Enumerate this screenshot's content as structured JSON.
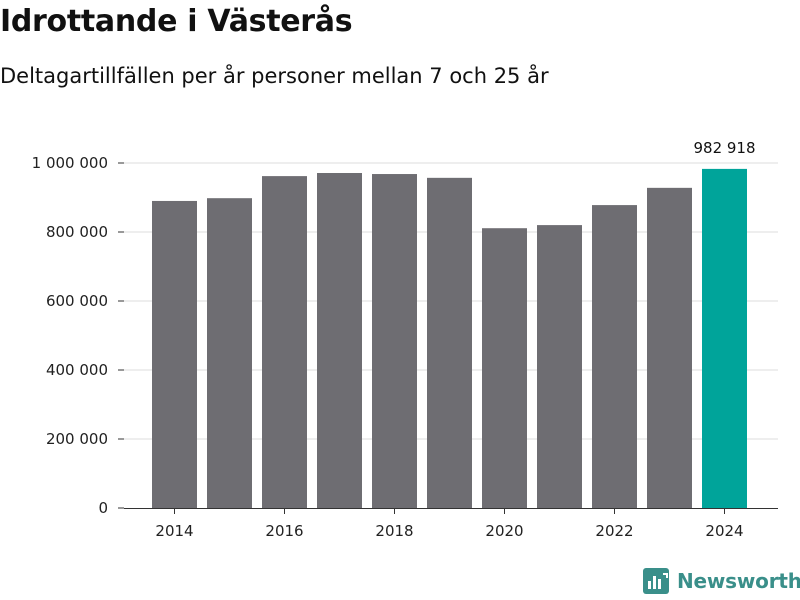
{
  "chart_data": {
    "type": "bar",
    "title": "Idrottande i Västerås",
    "subtitle": "Deltagartillfällen per år personer mellan 7 och 25 år",
    "categories": [
      "2014",
      "2015",
      "2016",
      "2017",
      "2018",
      "2019",
      "2020",
      "2021",
      "2022",
      "2023",
      "2024"
    ],
    "values": [
      890000,
      898000,
      962000,
      971000,
      968000,
      957000,
      811000,
      820000,
      878000,
      928000,
      982918
    ],
    "highlight_index": 10,
    "highlight_label": "982 918",
    "xlabel": "",
    "ylabel": "",
    "ylim": [
      0,
      1000000
    ],
    "yticks": [
      0,
      200000,
      400000,
      600000,
      800000,
      1000000
    ],
    "ytick_labels": [
      "0",
      "200 000",
      "400 000",
      "600 000",
      "800 000",
      "1 000 000"
    ],
    "xtick_labels": [
      "2014",
      "2016",
      "2018",
      "2020",
      "2022",
      "2024"
    ],
    "grid": true,
    "colors": {
      "bar": "#6e6d72",
      "highlight": "#00a49a",
      "grid": "#dddddd",
      "axis": "#333333"
    }
  },
  "brand": {
    "name": "Newsworthy",
    "icon": "newsworthy-logo-icon",
    "color": "#3a8f8a"
  }
}
